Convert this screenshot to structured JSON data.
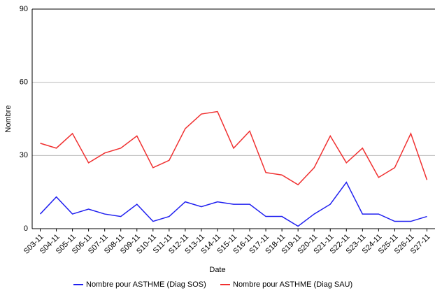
{
  "chart_data": {
    "type": "line",
    "x_label": "Date",
    "y_label": "Nombre",
    "categories": [
      "S03-11",
      "S04-11",
      "S05-11",
      "S06-11",
      "S07-11",
      "S08-11",
      "S09-11",
      "S10-11",
      "S11-11",
      "S12-11",
      "S13-11",
      "S14-11",
      "S15-11",
      "S16-11",
      "S17-11",
      "S18-11",
      "S19-11",
      "S20-11",
      "S21-11",
      "S22-11",
      "S23-11",
      "S24-11",
      "S25-11",
      "S26-11",
      "S27-11"
    ],
    "series": [
      {
        "name": "Nombre pour ASTHME (Diag SOS)",
        "color": "#2020f0",
        "values": [
          6,
          13,
          6,
          8,
          6,
          5,
          10,
          3,
          5,
          11,
          9,
          11,
          10,
          10,
          5,
          5,
          1,
          6,
          10,
          19,
          6,
          6,
          3,
          3,
          5
        ]
      },
      {
        "name": "Nombre pour ASTHME (Diag SAU)",
        "color": "#f03030",
        "values": [
          35,
          33,
          39,
          27,
          31,
          33,
          38,
          25,
          28,
          41,
          47,
          48,
          33,
          40,
          23,
          22,
          18,
          25,
          38,
          27,
          33,
          21,
          25,
          39,
          20
        ]
      }
    ],
    "ylim": [
      0,
      90
    ],
    "yticks": [
      0,
      30,
      60,
      90
    ],
    "grid": true,
    "legend": "bottom"
  }
}
